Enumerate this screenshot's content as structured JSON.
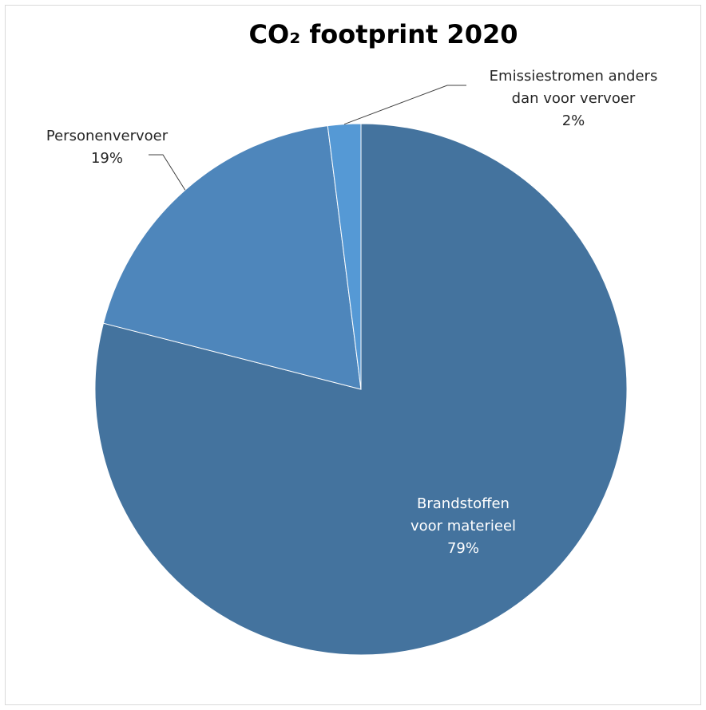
{
  "chart_data": {
    "type": "pie",
    "title": "CO₂ footprint 2020",
    "slices": [
      {
        "name": "Brandstoffen voor materieel",
        "value": 79,
        "label_lines": [
          "Brandstoffen",
          "voor materieel"
        ],
        "percent_label": "79%",
        "color": "#44739e"
      },
      {
        "name": "Personenvervoer",
        "value": 19,
        "label_lines": [
          "Personenvervoer"
        ],
        "percent_label": "19%",
        "color": "#4e86bb"
      },
      {
        "name": "Emissiestromen anders dan voor vervoer",
        "value": 2,
        "label_lines": [
          "Emissiestromen anders",
          "dan voor vervoer"
        ],
        "percent_label": "2%",
        "color": "#5599d5"
      }
    ],
    "start_angle": "12 o'clock",
    "direction": "clockwise",
    "legend": "none"
  }
}
